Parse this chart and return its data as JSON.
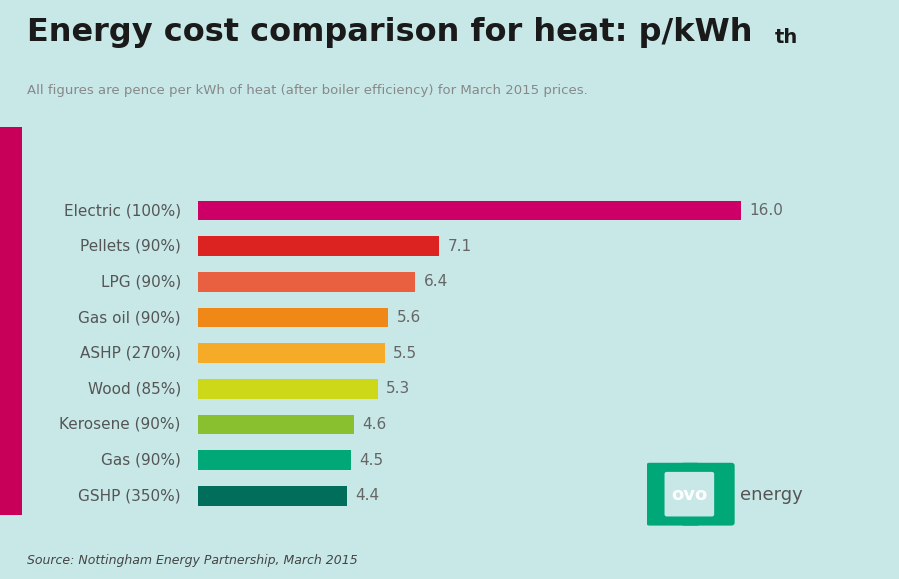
{
  "title_main": "Energy cost comparison for heat: p/kWh",
  "title_sub": "th",
  "subtitle": "All figures are pence per kWh of heat (after boiler efficiency) for March 2015 prices.",
  "source": "Source: Nottingham Energy Partnership, March 2015",
  "background_color": "#c8e8e8",
  "left_accent_color": "#c8005a",
  "categories": [
    "Electric (100%)",
    "Pellets (90%)",
    "LPG (90%)",
    "Gas oil (90%)",
    "ASHP (270%)",
    "Wood (85%)",
    "Kerosene (90%)",
    "Gas (90%)",
    "GSHP (350%)"
  ],
  "values": [
    16.0,
    7.1,
    6.4,
    5.6,
    5.5,
    5.3,
    4.6,
    4.5,
    4.4
  ],
  "bar_colors": [
    "#cc0066",
    "#dd2222",
    "#e86040",
    "#f08818",
    "#f5aa28",
    "#ccd818",
    "#88c030",
    "#00a878",
    "#006e5a"
  ],
  "value_label_color": "#666666",
  "category_label_color": "#555555",
  "ovo_color": "#00a878",
  "xlim": [
    0,
    18
  ],
  "bar_height": 0.55
}
